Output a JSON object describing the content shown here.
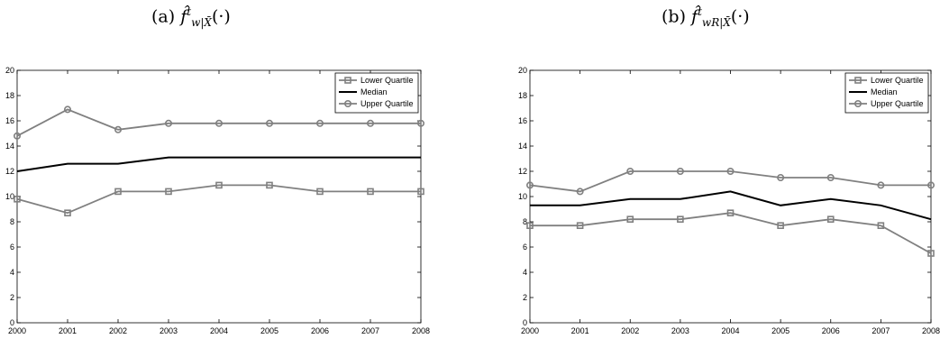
{
  "panels": [
    {
      "title_prefix": "(a)",
      "title_base": "f̂",
      "title_sup": "t",
      "title_sub": "w|X̄",
      "title_suffix": "(·)"
    },
    {
      "title_prefix": "(b)",
      "title_base": "f̂",
      "title_sup": "t",
      "title_sub": "wR|X̄",
      "title_suffix": "(·)"
    }
  ],
  "chart_data": [
    {
      "type": "line",
      "title": "(a) f̂ᵗ_{w|X̄}(·)",
      "x": [
        2000,
        2001,
        2002,
        2003,
        2004,
        2005,
        2006,
        2007,
        2008
      ],
      "xlim": [
        2000,
        2008
      ],
      "ylim": [
        0,
        20
      ],
      "yticks": [
        0,
        2,
        4,
        6,
        8,
        10,
        12,
        14,
        16,
        18,
        20
      ],
      "grid": false,
      "legend_position": "top-right",
      "series": [
        {
          "name": "Lower Quartile",
          "marker": "square",
          "color": "#808080",
          "values": [
            9.8,
            8.7,
            10.4,
            10.4,
            10.9,
            10.9,
            10.4,
            10.4,
            10.4
          ]
        },
        {
          "name": "Median",
          "marker": "none",
          "color": "#000000",
          "values": [
            12.0,
            12.6,
            12.6,
            13.1,
            13.1,
            13.1,
            13.1,
            13.1,
            13.1
          ]
        },
        {
          "name": "Upper Quartile",
          "marker": "circle",
          "color": "#808080",
          "values": [
            14.8,
            16.9,
            15.3,
            15.8,
            15.8,
            15.8,
            15.8,
            15.8,
            15.8
          ]
        }
      ]
    },
    {
      "type": "line",
      "title": "(b) f̂ᵗ_{w^R|X̄}(·)",
      "x": [
        2000,
        2001,
        2002,
        2003,
        2004,
        2005,
        2006,
        2007,
        2008
      ],
      "xlim": [
        2000,
        2008
      ],
      "ylim": [
        0,
        20
      ],
      "yticks": [
        0,
        2,
        4,
        6,
        8,
        10,
        12,
        14,
        16,
        18,
        20
      ],
      "grid": false,
      "legend_position": "top-right",
      "series": [
        {
          "name": "Lower Quartile",
          "marker": "square",
          "color": "#808080",
          "values": [
            7.7,
            7.7,
            8.2,
            8.2,
            8.7,
            7.7,
            8.2,
            7.7,
            5.5
          ]
        },
        {
          "name": "Median",
          "marker": "none",
          "color": "#000000",
          "values": [
            9.3,
            9.3,
            9.8,
            9.8,
            10.4,
            9.3,
            9.8,
            9.3,
            8.2
          ]
        },
        {
          "name": "Upper Quartile",
          "marker": "circle",
          "color": "#808080",
          "values": [
            10.9,
            10.4,
            12.0,
            12.0,
            12.0,
            11.5,
            11.5,
            10.9,
            10.9
          ]
        }
      ]
    }
  ]
}
